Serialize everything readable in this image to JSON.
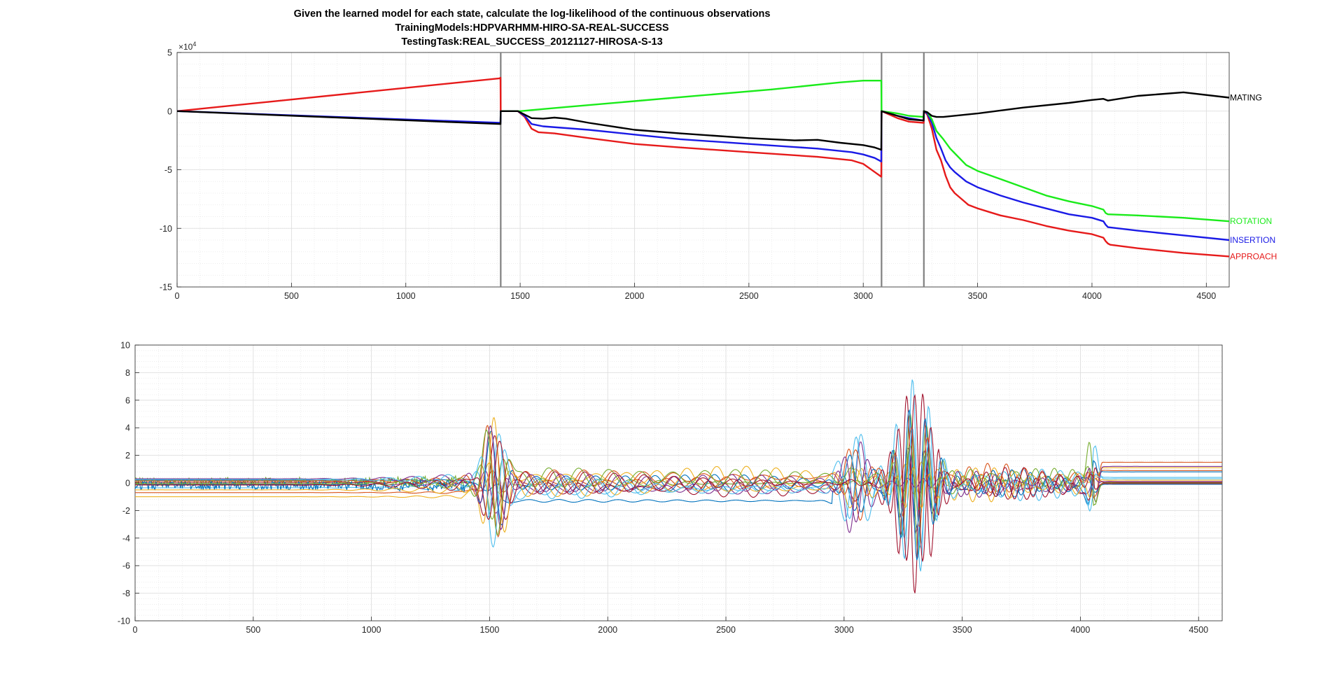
{
  "figure": {
    "title_lines": [
      "Given the learned model for each state, calculate the log-likelihood of the continuous observations",
      "TrainingModels:HDPVARHMM-HIRO-SA-REAL-SUCCESS",
      "TestingTask:REAL_SUCCESS_20121127-HIROSA-S-13"
    ]
  },
  "chart_data": [
    {
      "type": "line",
      "title": "",
      "xlabel": "",
      "ylabel": "",
      "xlim": [
        0,
        4600
      ],
      "ylim": [
        -15,
        5
      ],
      "y_multiplier_label": "×10^4",
      "y_exponent": 4,
      "xticks": [
        0,
        500,
        1000,
        1500,
        2000,
        2500,
        3000,
        3500,
        4000,
        4500
      ],
      "yticks": [
        -15,
        -10,
        -5,
        0,
        5
      ],
      "grid": "on (major and minor)",
      "vlines": [
        1415,
        3080,
        3265
      ],
      "series": [
        {
          "name": "APPROACH",
          "color": "#e61a1a",
          "x": [
            0,
            1410,
            1414,
            1415,
            1490,
            1520,
            1550,
            1580,
            1650,
            1800,
            2000,
            2200,
            2500,
            2800,
            2950,
            3000,
            3050,
            3079,
            3080,
            3150,
            3200,
            3264,
            3265,
            3280,
            3300,
            3320,
            3340,
            3360,
            3380,
            3400,
            3430,
            3460,
            3500,
            3550,
            3600,
            3700,
            3800,
            3900,
            4000,
            4050,
            4060,
            4070,
            4080,
            4200,
            4300,
            4400,
            4600
          ],
          "y": [
            0,
            2.8,
            2.85,
            0,
            0,
            -0.5,
            -1.5,
            -1.8,
            -1.9,
            -2.3,
            -2.8,
            -3.1,
            -3.5,
            -3.9,
            -4.2,
            -4.5,
            -5.2,
            -5.6,
            0,
            -0.6,
            -0.9,
            -1.0,
            0,
            -0.3,
            -1.5,
            -3.3,
            -4.2,
            -5.5,
            -6.5,
            -7.0,
            -7.5,
            -8.0,
            -8.3,
            -8.6,
            -8.9,
            -9.3,
            -9.8,
            -10.2,
            -10.5,
            -10.8,
            -11.1,
            -11.3,
            -11.4,
            -11.7,
            -11.9,
            -12.1,
            -12.4
          ]
        },
        {
          "name": "INSERTION",
          "color": "#1a1ae6",
          "x": [
            0,
            1414,
            1415,
            1490,
            1520,
            1550,
            1600,
            1800,
            2000,
            2200,
            2500,
            2800,
            2950,
            3000,
            3050,
            3079,
            3080,
            3150,
            3200,
            3264,
            3265,
            3280,
            3300,
            3320,
            3340,
            3360,
            3380,
            3400,
            3450,
            3500,
            3600,
            3700,
            3800,
            3900,
            4000,
            4050,
            4060,
            4070,
            4200,
            4400,
            4600
          ],
          "y": [
            0,
            -1.0,
            0,
            0,
            -0.4,
            -1.1,
            -1.3,
            -1.6,
            -2.0,
            -2.4,
            -2.8,
            -3.2,
            -3.5,
            -3.7,
            -4.0,
            -4.3,
            0,
            -0.4,
            -0.6,
            -0.8,
            0,
            -0.2,
            -1.0,
            -2.3,
            -3.2,
            -4.2,
            -4.8,
            -5.2,
            -6.0,
            -6.5,
            -7.2,
            -7.8,
            -8.3,
            -8.8,
            -9.1,
            -9.4,
            -9.7,
            -9.9,
            -10.2,
            -10.6,
            -11.0
          ]
        },
        {
          "name": "ROTATION",
          "color": "#1aeb1a",
          "x": [
            1415,
            1490,
            1500,
            1700,
            2000,
            2300,
            2600,
            2900,
            3000,
            3079,
            3080,
            3150,
            3200,
            3264,
            3265,
            3280,
            3300,
            3320,
            3350,
            3380,
            3400,
            3450,
            3500,
            3600,
            3700,
            3800,
            3900,
            4000,
            4050,
            4060,
            4070,
            4200,
            4400,
            4600
          ],
          "y": [
            0,
            0,
            0,
            0.35,
            0.85,
            1.35,
            1.85,
            2.45,
            2.6,
            2.6,
            0,
            -0.2,
            -0.4,
            -0.5,
            0,
            -0.1,
            -0.7,
            -1.7,
            -2.4,
            -3.2,
            -3.6,
            -4.6,
            -5.1,
            -5.8,
            -6.5,
            -7.2,
            -7.7,
            -8.1,
            -8.4,
            -8.7,
            -8.8,
            -8.9,
            -9.1,
            -9.4
          ]
        },
        {
          "name": "MATING",
          "color": "#000000",
          "x": [
            0,
            1414,
            1415,
            1490,
            1520,
            1550,
            1600,
            1650,
            1700,
            1800,
            2000,
            2200,
            2500,
            2700,
            2800,
            2900,
            3000,
            3050,
            3079,
            3080,
            3150,
            3200,
            3264,
            3265,
            3280,
            3300,
            3320,
            3350,
            3500,
            3700,
            3900,
            4000,
            4050,
            4070,
            4200,
            4400,
            4600
          ],
          "y": [
            0,
            -1.1,
            0,
            0,
            -0.3,
            -0.6,
            -0.65,
            -0.55,
            -0.65,
            -1.0,
            -1.6,
            -1.9,
            -2.3,
            -2.5,
            -2.45,
            -2.7,
            -2.9,
            -3.1,
            -3.3,
            0,
            -0.4,
            -0.7,
            -0.8,
            0,
            -0.1,
            -0.4,
            -0.5,
            -0.5,
            -0.2,
            0.3,
            0.7,
            0.95,
            1.05,
            0.9,
            1.3,
            1.6,
            1.15
          ]
        }
      ],
      "end_labels": [
        "MATING",
        "ROTATION",
        "INSERTION",
        "APPROACH"
      ]
    },
    {
      "type": "line",
      "title": "",
      "xlabel": "",
      "ylabel": "",
      "xlim": [
        0,
        4600
      ],
      "ylim": [
        -10,
        10
      ],
      "xticks": [
        0,
        500,
        1000,
        1500,
        2000,
        2500,
        3000,
        3500,
        4000,
        4500
      ],
      "yticks": [
        -10,
        -8,
        -6,
        -4,
        -2,
        0,
        2,
        4,
        6,
        8,
        10
      ],
      "grid": "on (major and minor)",
      "n_series": 14,
      "colors": [
        "#0072bd",
        "#d95319",
        "#edb120",
        "#7e2f8e",
        "#77ac30",
        "#4dbeee",
        "#a2142f",
        "#0072bd",
        "#d95319",
        "#edb120",
        "#7e2f8e",
        "#77ac30",
        "#4dbeee",
        "#a2142f"
      ],
      "baselines": [
        0.2,
        -0.7,
        -1.0,
        -0.1,
        0.1,
        -0.35,
        0.05,
        -0.2,
        0.15,
        -0.5,
        0.3,
        -0.05,
        0.25,
        -0.15
      ],
      "bursts": [
        {
          "center": 1520,
          "amplitude": 5.5,
          "width": 70
        },
        {
          "center": 1800,
          "amplitude": 1.0,
          "width": 600
        },
        {
          "center": 2550,
          "amplitude": 0.8,
          "width": 450
        },
        {
          "center": 3050,
          "amplitude": 4.0,
          "width": 80
        },
        {
          "center": 3300,
          "amplitude": 8.5,
          "width": 110
        },
        {
          "center": 3650,
          "amplitude": 1.8,
          "width": 250
        },
        {
          "center": 4050,
          "amplitude": 4.0,
          "width": 25
        }
      ],
      "end_values": [
        0.8,
        1.5,
        1.1,
        0.1,
        0.0,
        0.3,
        0.05,
        -0.1,
        0.9,
        0.2,
        1.2,
        0.0,
        0.4,
        -0.05
      ]
    }
  ]
}
